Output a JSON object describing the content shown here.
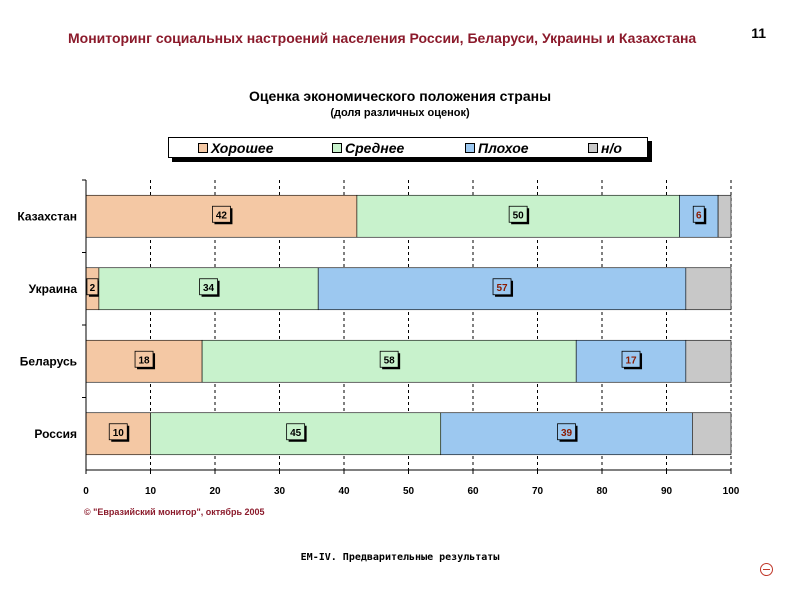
{
  "header": {
    "title": "Мониторинг социальных настроений населения России, Беларуси, Украины и Казахстана",
    "page_number": "11"
  },
  "footer": {
    "source": "© \"Евразийский монитор\", октябрь 2005",
    "caption": "ЕМ-IV. Предварительные результаты"
  },
  "colors": {
    "good": "#f4c8a4",
    "medium": "#c8f2cc",
    "bad": "#9cc8f0",
    "na": "#c8c8c8",
    "title": "#8b1a2b"
  },
  "legend": [
    {
      "label": "Хорошее",
      "color": "#f4c8a4"
    },
    {
      "label": "Среднее",
      "color": "#c8f2cc"
    },
    {
      "label": "Плохое",
      "color": "#9cc8f0"
    },
    {
      "label": "н/о",
      "color": "#c8c8c8"
    }
  ],
  "chart_data": {
    "type": "bar",
    "orientation": "horizontal",
    "stacked": true,
    "title": "Оценка экономического положения страны",
    "subtitle": "(доля различных оценок)",
    "xlim": [
      0,
      100
    ],
    "xticks": [
      0,
      10,
      20,
      30,
      40,
      50,
      60,
      70,
      80,
      90,
      100
    ],
    "grid": true,
    "legend_position": "top",
    "categories": [
      "Казахстан",
      "Украина",
      "Беларусь",
      "Россия"
    ],
    "series": [
      {
        "name": "Хорошее",
        "values": [
          42,
          2,
          18,
          10
        ],
        "labels": [
          "42",
          "2",
          "18",
          "10"
        ]
      },
      {
        "name": "Среднее",
        "values": [
          50,
          34,
          58,
          45
        ],
        "labels": [
          "50",
          "34",
          "58",
          "45"
        ]
      },
      {
        "name": "Плохое",
        "values": [
          6,
          57,
          17,
          39
        ],
        "labels": [
          "6",
          "57",
          "17",
          "39"
        ]
      },
      {
        "name": "н/о",
        "values": [
          2,
          7,
          7,
          6
        ],
        "labels": [
          "",
          "",
          "",
          ""
        ]
      }
    ]
  }
}
